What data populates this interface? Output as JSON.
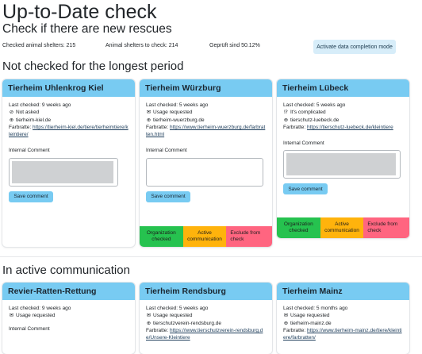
{
  "header": {
    "title": "Up-to-Date check",
    "subtitle": "Check if there are new rescues"
  },
  "stats": {
    "checked": "Checked animal shelters: 215",
    "to_check": "Animal shelters to check: 214",
    "percent": "Geprüft sind 50.12%"
  },
  "mode_button": "Activate data completion mode",
  "labels": {
    "internal_comment": "Internal Comment",
    "save_comment": "Save comment",
    "org_checked": "Organization checked",
    "active_comm": "Active communication",
    "exclude": "Exclude from check"
  },
  "sections": [
    {
      "title": "Not checked for the longest period",
      "cards": [
        {
          "name": "Tierheim Uhlenkrog Kiel",
          "last_checked": "Last checked: 9 weeks ago",
          "status": "Not asked",
          "website": "tierheim-kiel.de",
          "farbratte_label": "Farbratte:",
          "farbratte_url": "https://tierheim-kiel.de/tiere/tierheimtiere/kleintiere/"
        },
        {
          "name": "Tierheim Würzburg",
          "last_checked": "Last checked: 5 weeks ago",
          "status": "Usage requested",
          "website": "tierheim-wuerzburg.de",
          "farbratte_label": "Farbratte:",
          "farbratte_url": "https://www.tierheim-wuerzburg.de/farbratten.html"
        },
        {
          "name": "Tierheim Lübeck",
          "last_checked": "Last checked: 5 weeks ago",
          "status": "It's complicated",
          "website": "tierschutz-luebeck.de",
          "farbratte_label": "Farbratte:",
          "farbratte_url": "https://tierschutz-luebeck.de/kleintiere"
        }
      ]
    },
    {
      "title": "In active communication",
      "cards": [
        {
          "name": "Revier-Ratten-Rettung",
          "last_checked": "Last checked: 9 weeks ago",
          "status": "Usage requested",
          "comment_label": "Internal Comment"
        },
        {
          "name": "Tierheim Rendsburg",
          "last_checked": "Last checked: 5 weeks ago",
          "status": "Usage requested",
          "website": "tierschutzverein-rendsburg.de",
          "farbratte_label": "Farbratte:",
          "farbratte_url": "https://www.tierschutzverein-rendsburg.de/Unsere-Kleintiere"
        },
        {
          "name": "Tierheim Mainz",
          "last_checked": "Last checked: 5 months ago",
          "status": "Usage requested",
          "website": "tierheim-mainz.de",
          "farbratte_label": "Farbratte:",
          "farbratte_url": "https://www.tierheim-mainz.de/tiere/kleintiere/farbratten/"
        }
      ]
    }
  ]
}
